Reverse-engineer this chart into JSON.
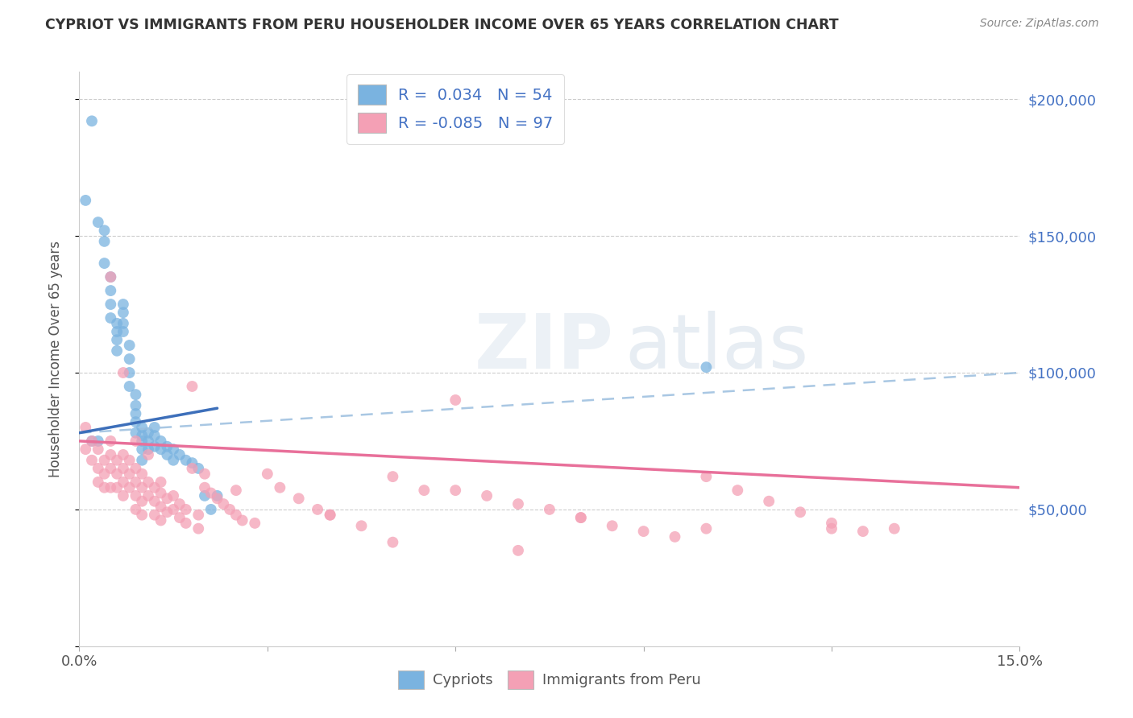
{
  "title": "CYPRIOT VS IMMIGRANTS FROM PERU HOUSEHOLDER INCOME OVER 65 YEARS CORRELATION CHART",
  "source": "Source: ZipAtlas.com",
  "ylabel": "Householder Income Over 65 years",
  "xlim": [
    0,
    0.15
  ],
  "ylim": [
    0,
    210000
  ],
  "ytick_labels_right": [
    "$50,000",
    "$100,000",
    "$150,000",
    "$200,000"
  ],
  "ytick_positions_right": [
    50000,
    100000,
    150000,
    200000
  ],
  "cypriot_color": "#7ab3e0",
  "peru_color": "#f4a0b5",
  "cypriot_R": 0.034,
  "cypriot_N": 54,
  "peru_R": -0.085,
  "peru_N": 97,
  "background_color": "#ffffff",
  "cypriot_x": [
    0.001,
    0.002,
    0.002,
    0.003,
    0.003,
    0.004,
    0.004,
    0.004,
    0.005,
    0.005,
    0.005,
    0.005,
    0.006,
    0.006,
    0.006,
    0.006,
    0.007,
    0.007,
    0.007,
    0.007,
    0.008,
    0.008,
    0.008,
    0.008,
    0.009,
    0.009,
    0.009,
    0.009,
    0.009,
    0.01,
    0.01,
    0.01,
    0.01,
    0.01,
    0.011,
    0.011,
    0.011,
    0.012,
    0.012,
    0.012,
    0.013,
    0.013,
    0.014,
    0.014,
    0.015,
    0.015,
    0.016,
    0.017,
    0.018,
    0.019,
    0.02,
    0.021,
    0.022,
    0.1
  ],
  "cypriot_y": [
    163000,
    192000,
    75000,
    155000,
    75000,
    152000,
    148000,
    140000,
    135000,
    130000,
    125000,
    120000,
    118000,
    115000,
    112000,
    108000,
    125000,
    122000,
    118000,
    115000,
    110000,
    105000,
    100000,
    95000,
    92000,
    88000,
    85000,
    82000,
    78000,
    80000,
    77000,
    75000,
    72000,
    68000,
    78000,
    75000,
    72000,
    80000,
    77000,
    73000,
    75000,
    72000,
    73000,
    70000,
    72000,
    68000,
    70000,
    68000,
    67000,
    65000,
    55000,
    50000,
    55000,
    102000
  ],
  "peru_x": [
    0.001,
    0.001,
    0.002,
    0.002,
    0.003,
    0.003,
    0.003,
    0.004,
    0.004,
    0.004,
    0.005,
    0.005,
    0.005,
    0.005,
    0.006,
    0.006,
    0.006,
    0.007,
    0.007,
    0.007,
    0.007,
    0.008,
    0.008,
    0.008,
    0.009,
    0.009,
    0.009,
    0.009,
    0.01,
    0.01,
    0.01,
    0.01,
    0.011,
    0.011,
    0.012,
    0.012,
    0.012,
    0.013,
    0.013,
    0.013,
    0.014,
    0.014,
    0.015,
    0.015,
    0.016,
    0.016,
    0.017,
    0.017,
    0.018,
    0.018,
    0.019,
    0.019,
    0.02,
    0.02,
    0.021,
    0.022,
    0.023,
    0.024,
    0.025,
    0.026,
    0.028,
    0.03,
    0.032,
    0.035,
    0.038,
    0.04,
    0.045,
    0.05,
    0.055,
    0.06,
    0.065,
    0.07,
    0.075,
    0.08,
    0.085,
    0.09,
    0.095,
    0.1,
    0.105,
    0.11,
    0.115,
    0.12,
    0.125,
    0.13,
    0.005,
    0.007,
    0.009,
    0.011,
    0.013,
    0.025,
    0.04,
    0.06,
    0.08,
    0.1,
    0.12,
    0.05,
    0.07
  ],
  "peru_y": [
    80000,
    72000,
    75000,
    68000,
    72000,
    65000,
    60000,
    68000,
    63000,
    58000,
    75000,
    70000,
    65000,
    58000,
    68000,
    63000,
    58000,
    70000,
    65000,
    60000,
    55000,
    68000,
    63000,
    58000,
    65000,
    60000,
    55000,
    50000,
    63000,
    58000,
    53000,
    48000,
    60000,
    55000,
    58000,
    53000,
    48000,
    56000,
    51000,
    46000,
    54000,
    49000,
    55000,
    50000,
    52000,
    47000,
    50000,
    45000,
    95000,
    65000,
    48000,
    43000,
    63000,
    58000,
    56000,
    54000,
    52000,
    50000,
    48000,
    46000,
    45000,
    63000,
    58000,
    54000,
    50000,
    48000,
    44000,
    62000,
    57000,
    90000,
    55000,
    52000,
    50000,
    47000,
    44000,
    42000,
    40000,
    62000,
    57000,
    53000,
    49000,
    45000,
    42000,
    43000,
    135000,
    100000,
    75000,
    70000,
    60000,
    57000,
    48000,
    57000,
    47000,
    43000,
    43000,
    38000,
    35000
  ]
}
